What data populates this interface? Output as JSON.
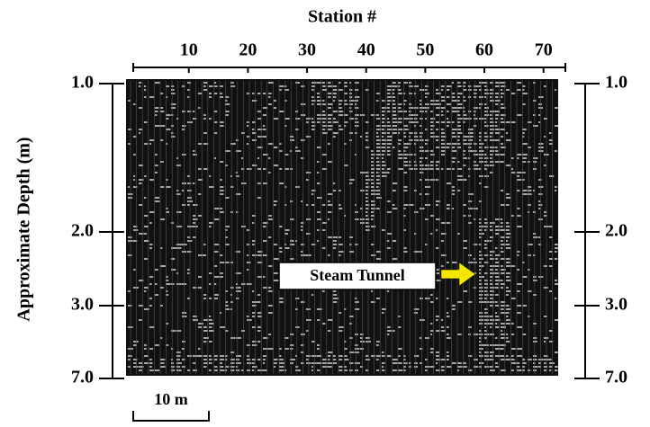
{
  "chart_data": {
    "type": "wiggle",
    "title": "Station #",
    "ylabel": "Approximate Depth (m)",
    "xlim": [
      0.6,
      73.7
    ],
    "xticks": [
      10,
      20,
      30,
      40,
      50,
      60,
      70
    ],
    "depth_labels": [
      "1.0",
      "2.0",
      "3.0",
      "7.0"
    ],
    "annotation": "Steam Tunnel",
    "arrow_color": "#f5e600",
    "scale_bar": "10 m"
  }
}
